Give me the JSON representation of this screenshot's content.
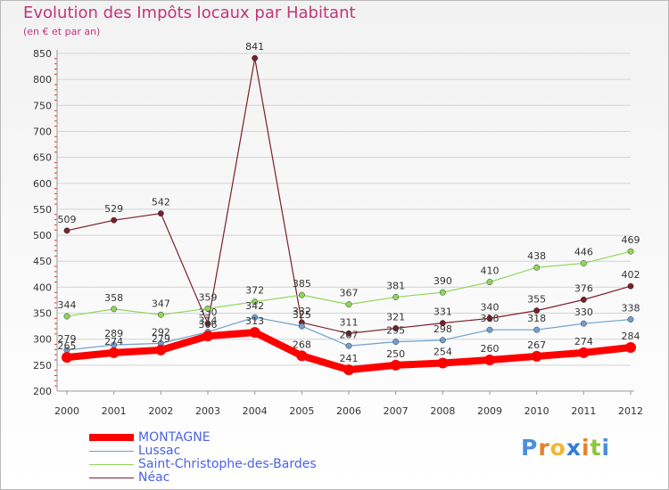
{
  "chart_data": {
    "type": "line",
    "title": "Evolution des Impôts locaux par Habitant",
    "subtitle": "(en € et par an)",
    "xlabel": "",
    "ylabel": "",
    "ylim": [
      200,
      850
    ],
    "yticks": [
      200,
      250,
      300,
      350,
      400,
      450,
      500,
      550,
      600,
      650,
      700,
      750,
      800,
      850
    ],
    "categories": [
      "2000",
      "2001",
      "2002",
      "2003",
      "2004",
      "2005",
      "2006",
      "2007",
      "2008",
      "2009",
      "2010",
      "2011",
      "2012"
    ],
    "series": [
      {
        "name": "Néac",
        "color": "#7a1f2b",
        "values": [
          509,
          529,
          542,
          330,
          841,
          332,
          311,
          321,
          331,
          340,
          355,
          376,
          402
        ],
        "labels": [
          "509",
          "529",
          "542",
          "330",
          "841",
          "332",
          "311",
          "321",
          "331",
          "340",
          "355",
          "376",
          "402"
        ]
      },
      {
        "name": "Saint-Christophe-des-Bardes",
        "color": "#8fd65c",
        "values": [
          344,
          358,
          347,
          359,
          372,
          385,
          367,
          381,
          390,
          410,
          438,
          446,
          469
        ],
        "labels": [
          "344",
          "358",
          "347",
          "359",
          "372",
          "385",
          "367",
          "381",
          "390",
          "410",
          "438",
          "446",
          "469"
        ]
      },
      {
        "name": "Lussac",
        "color": "#6f9fd1",
        "values": [
          279,
          289,
          292,
          314,
          342,
          325,
          287,
          295,
          298,
          318,
          318,
          330,
          338
        ],
        "labels": [
          "279",
          "289",
          "292",
          "314",
          "342",
          "325",
          "287",
          "295",
          "298",
          "318",
          "318",
          "330",
          "338"
        ]
      },
      {
        "name": "MONTAGNE",
        "color": "#ff0000",
        "values": [
          265,
          274,
          279,
          306,
          313,
          268,
          241,
          250,
          254,
          260,
          267,
          274,
          284
        ],
        "labels": [
          "265",
          "274",
          "279",
          "306",
          "313",
          "268",
          "241",
          "250",
          "254",
          "260",
          "267",
          "274",
          "284"
        ]
      }
    ],
    "legend": [
      "MONTAGNE",
      "Lussac",
      "Saint-Christophe-des-Bardes",
      "Néac"
    ],
    "legend_position": "bottom-left"
  },
  "logo": {
    "text": "Proxiti",
    "letters": [
      "P",
      "r",
      "o",
      "x",
      "i",
      "t",
      "i"
    ],
    "colors": [
      "#4a90d9",
      "#e8822a",
      "#f2b632",
      "#2f7ed6",
      "#e8822a",
      "#8cc63f",
      "#4a90d9"
    ]
  }
}
